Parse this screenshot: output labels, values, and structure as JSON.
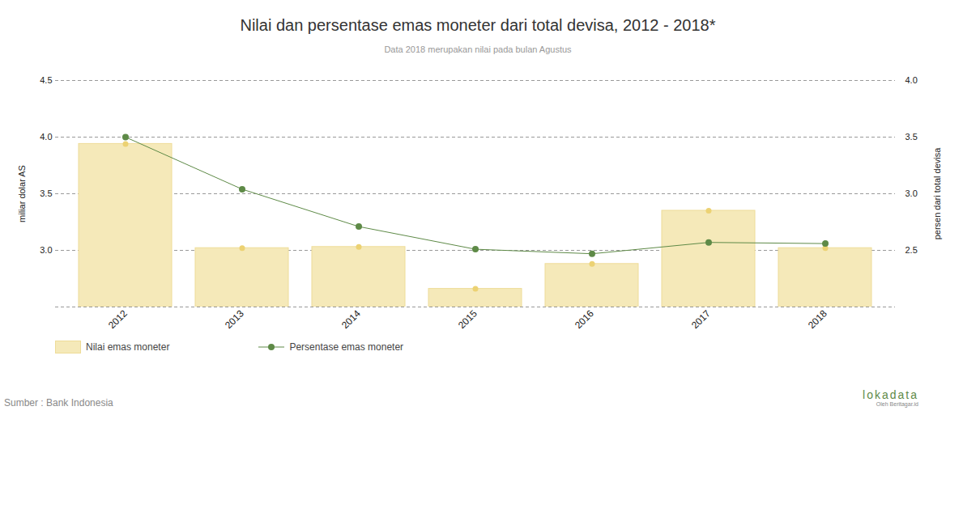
{
  "chart_data": {
    "type": "bar",
    "title": "Nilai dan persentase emas moneter dari total devisa, 2012 - 2018*",
    "subtitle": "Data 2018 merupakan nilai pada bulan Agustus",
    "y_label": "miliar dolar AS",
    "y2_label": "persen dari total devisa",
    "source": "Sumber : Bank Indonesia",
    "credits": [
      "lokadata",
      "Oleh Beritagar.id"
    ],
    "categories": [
      "2012",
      "2013",
      "2014",
      "2015",
      "2016",
      "2017",
      "2018"
    ],
    "series": [
      {
        "name": "Nilai emas moneter",
        "type": "bar",
        "marker": "circle",
        "color": "#f5e9b9",
        "values": [
          3.94,
          3.02,
          3.03,
          2.66,
          2.88,
          3.35,
          3.02
        ]
      },
      {
        "name": "Persentase emas moneter",
        "type": "line",
        "marker": "circle",
        "color": "#5e8a47",
        "axis": "y2",
        "values": [
          3.5,
          3.04,
          2.71,
          2.51,
          2.47,
          2.57,
          2.56
        ]
      }
    ],
    "ylim": [
      2.5,
      4.5
    ],
    "yticks": [
      {
        "value": 3,
        "label": "3.0"
      },
      3.5,
      {
        "value": 4,
        "label": "4.0"
      },
      4.5
    ],
    "y2lim": [
      2,
      4
    ],
    "y2ticks": [
      2.5,
      {
        "value": 3,
        "label": "3.0"
      },
      3.5,
      {
        "value": 4,
        "label": "4.0"
      }
    ],
    "grid": true,
    "legend": "bottom-left"
  }
}
